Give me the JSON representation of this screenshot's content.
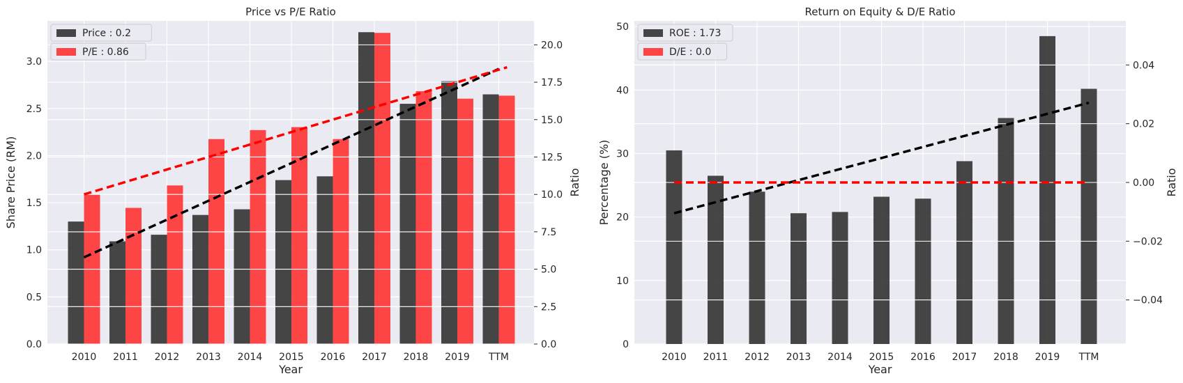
{
  "colors": {
    "background": "#eaeaf2",
    "grid": "#ffffff",
    "dark": "#333333",
    "red": "#ff3333",
    "trend_dark": "#000000",
    "trend_red": "#ff0000"
  },
  "chart_data": [
    {
      "type": "bar",
      "title": "Price vs P/E Ratio",
      "xlabel": "Year",
      "ylabel": "Share Price (RM)",
      "y2label": "Ratio",
      "categories": [
        "2010",
        "2011",
        "2012",
        "2013",
        "2014",
        "2015",
        "2016",
        "2017",
        "2018",
        "2019",
        "TTM"
      ],
      "ylim": [
        0,
        3.43
      ],
      "y2lim": [
        0,
        21.6
      ],
      "yticks": [
        "0.0",
        "0.5",
        "1.0",
        "1.5",
        "2.0",
        "2.5",
        "3.0"
      ],
      "y2ticks": [
        "0.0",
        "2.5",
        "5.0",
        "7.5",
        "10.0",
        "12.5",
        "15.0",
        "17.5",
        "20.0"
      ],
      "legend_position": "top-left",
      "grid": true,
      "series": [
        {
          "name": "Price : 0.2",
          "axis": "left",
          "values": [
            1.3,
            1.09,
            1.16,
            1.37,
            1.43,
            1.74,
            1.78,
            3.31,
            2.55,
            2.79,
            2.65
          ]
        },
        {
          "name": "P/E : 0.86",
          "axis": "right",
          "values": [
            10.0,
            9.1,
            10.6,
            13.7,
            14.3,
            14.5,
            13.7,
            20.8,
            16.9,
            16.4,
            16.6
          ]
        }
      ],
      "trendlines": [
        {
          "axis": "left",
          "from": [
            0,
            0.92
          ],
          "to": [
            10,
            2.92
          ],
          "color": "black"
        },
        {
          "axis": "right",
          "from": [
            0,
            10.0
          ],
          "to": [
            10.2,
            18.5
          ],
          "color": "red"
        }
      ]
    },
    {
      "type": "bar",
      "title": "Return on Equity & D/E Ratio",
      "xlabel": "Year",
      "ylabel": "Percentage (%)",
      "y2label": "Ratio",
      "categories": [
        "2010",
        "2011",
        "2012",
        "2013",
        "2014",
        "2015",
        "2016",
        "2017",
        "2018",
        "2019",
        "TTM"
      ],
      "ylim": [
        0,
        50.9
      ],
      "y2lim": [
        -0.055,
        0.055
      ],
      "yticks": [
        "0",
        "10",
        "20",
        "30",
        "40",
        "50"
      ],
      "y2ticks": [
        "−0.04",
        "−0.02",
        "0.00",
        "0.02",
        "0.04"
      ],
      "legend_position": "top-left",
      "grid": true,
      "series": [
        {
          "name": "ROE : 1.73",
          "axis": "left",
          "values": [
            30.5,
            26.5,
            24.0,
            20.6,
            20.8,
            23.2,
            22.9,
            28.8,
            35.6,
            48.5,
            40.2
          ]
        },
        {
          "name": "D/E : 0.0",
          "axis": "right",
          "values": [
            0,
            0,
            0,
            0,
            0,
            0,
            0,
            0,
            0,
            0,
            0
          ]
        }
      ],
      "trendlines": [
        {
          "axis": "left",
          "from": [
            0,
            20.6
          ],
          "to": [
            10,
            38.0
          ],
          "color": "black"
        },
        {
          "axis": "right",
          "from": [
            0,
            0.0
          ],
          "to": [
            10,
            0.0
          ],
          "color": "red"
        }
      ]
    }
  ]
}
